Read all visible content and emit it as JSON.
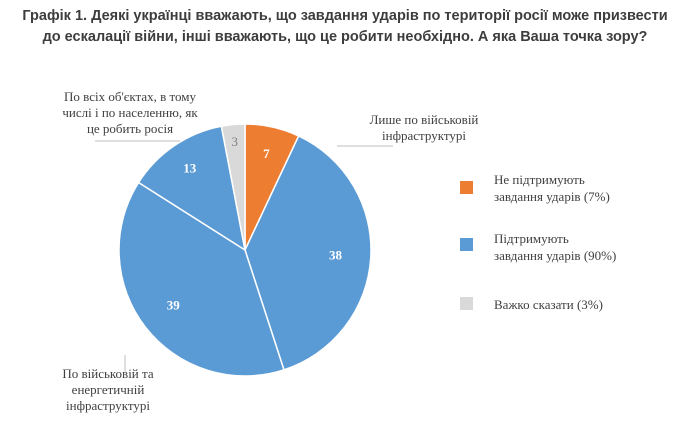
{
  "chart_data": {
    "type": "pie",
    "title_lines": [
      "Графік 1. Деякі українці вважають, що завдання ударів по території росії може призвести",
      "до ескалації війни, інші вважають, що це робити необхідно. А яка Ваша точка зору?"
    ],
    "slices": [
      {
        "label": "Не підтримують завдання ударів",
        "value": 7,
        "color": "#ED7D31"
      },
      {
        "label": "Лише по військовій інфраструктурі",
        "value": 38,
        "color": "#5B9BD5"
      },
      {
        "label": "По військовій та енергетичній інфраструктурі",
        "value": 39,
        "color": "#5B9BD5"
      },
      {
        "label": "По всіх об'єктах, в тому числі і по населенню, як це робить росія",
        "value": 13,
        "color": "#5B9BD5"
      },
      {
        "label": "Важко сказати",
        "value": 3,
        "color": "#D9D9D9"
      }
    ],
    "callouts": {
      "military_only": [
        "Лише по військовій",
        "інфраструктурі"
      ],
      "military_energy": [
        "По військовій та",
        "енергетичній",
        "інфраструктурі"
      ],
      "all_objects": [
        "По всіх об'єктах, в тому",
        "числі і по населенню, як",
        "це робить росія"
      ]
    },
    "legend": [
      {
        "lines": [
          "Не підтримують",
          "завдання ударів (7%)"
        ],
        "color": "#ED7D31"
      },
      {
        "lines": [
          "Підтримують",
          "завдання ударів (90%)"
        ],
        "color": "#5B9BD5"
      },
      {
        "lines": [
          "Важко сказати (3%)"
        ],
        "color": "#D9D9D9"
      }
    ],
    "legend_position": "right"
  }
}
